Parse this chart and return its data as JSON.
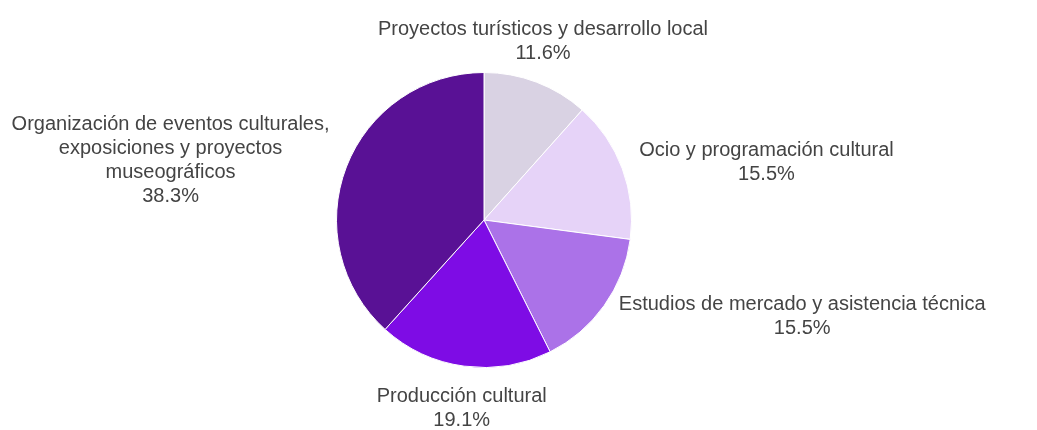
{
  "chart_data": {
    "type": "pie",
    "categories": [
      "Proyectos turísticos y desarrollo local",
      "Ocio y programación cultural",
      "Estudios de mercado y asistencia técnica",
      "Producción cultural",
      "Organización de eventos culturales, exposiciones y proyectos museográficos"
    ],
    "values": [
      11.6,
      15.5,
      15.5,
      19.1,
      38.3
    ],
    "colors": [
      "#d9d2e3",
      "#e6d3f8",
      "#ab72e8",
      "#7e0ce5",
      "#591195"
    ],
    "value_labels": [
      "11.6%",
      "15.5%",
      "15.5%",
      "19.1%",
      "38.3%"
    ],
    "legend": false
  }
}
